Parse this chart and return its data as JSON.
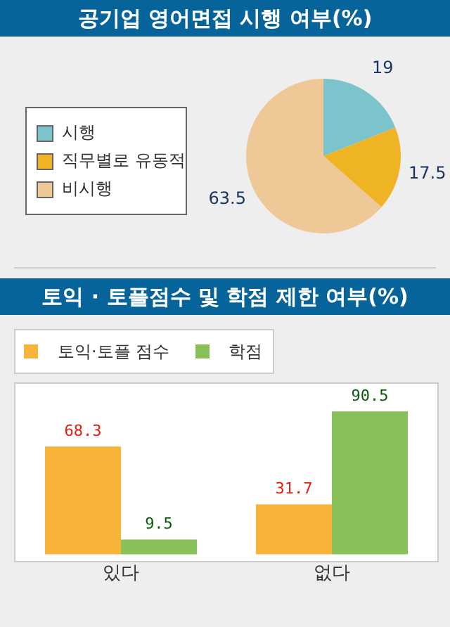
{
  "chart_data": [
    {
      "type": "pie",
      "title": "공기업 영어면접 시행 여부(%)",
      "categories": [
        "시행",
        "직무별로 유동적",
        "비시행"
      ],
      "values": [
        19,
        17.5,
        63.5
      ],
      "colors": [
        "#7cc4cc",
        "#eeb424",
        "#eec896"
      ],
      "data_labels": true,
      "legend": "left"
    },
    {
      "type": "bar",
      "title": "토익 · 토플점수 및 학점 제한 여부(%)",
      "categories": [
        "있다",
        "없다"
      ],
      "series": [
        {
          "name": "토익·토플 점수",
          "color": "#f8b438",
          "values": [
            68.3,
            31.7
          ]
        },
        {
          "name": "학점",
          "color": "#88c05a",
          "values": [
            9.5,
            90.5
          ]
        }
      ],
      "ylim": [
        0,
        108
      ],
      "tick_labels": "x",
      "data_labels": true,
      "legend": "top left"
    }
  ]
}
